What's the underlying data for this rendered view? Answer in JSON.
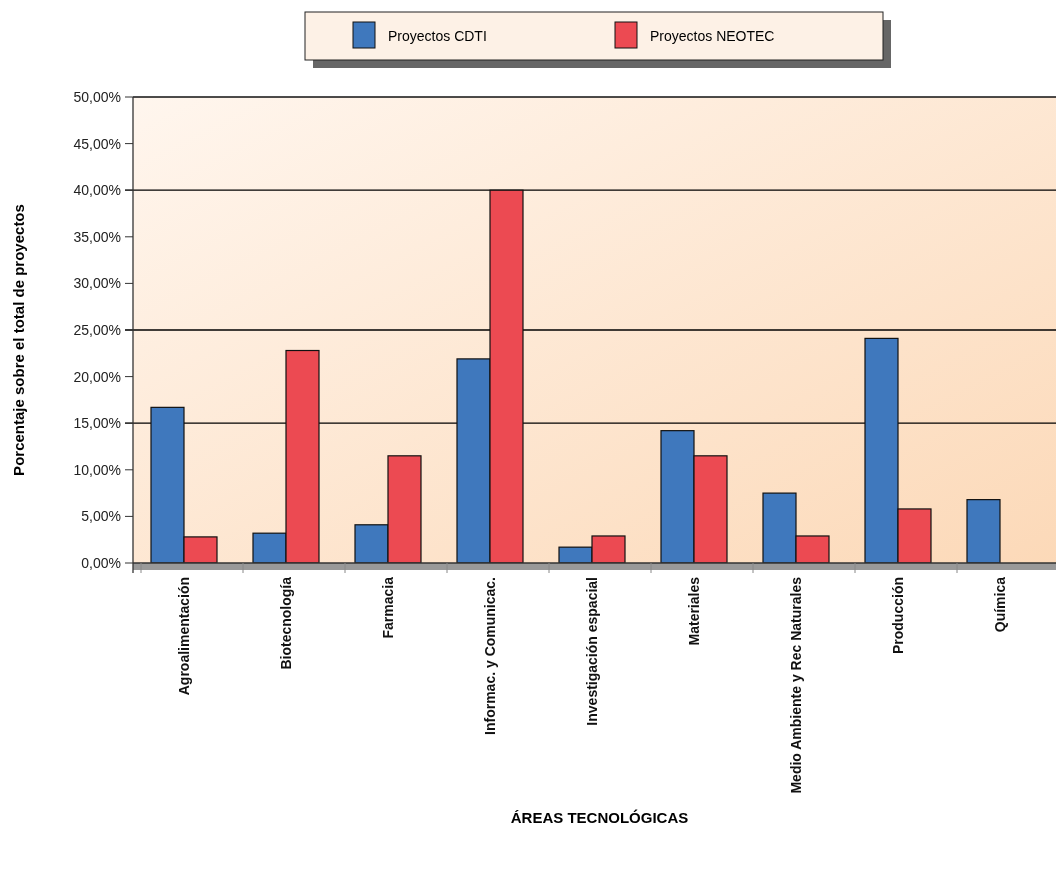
{
  "chart_data": {
    "type": "bar",
    "xlabel": "ÁREAS TECNOLÓGICAS",
    "ylabel": "Porcentaje sobre el total de proyectos",
    "categories": [
      "Agroalimentación",
      "Biotecnología",
      "Farmacia",
      "Informac. y Comunicac.",
      "Investigación espacial",
      "Materiales",
      "Medio Ambiente y Rec Naturales",
      "Producción",
      "Química"
    ],
    "series": [
      {
        "name": "Proyectos CDTI",
        "color": "#3f78bd",
        "values": [
          16.7,
          3.2,
          4.1,
          21.9,
          1.7,
          14.2,
          7.5,
          24.1,
          6.8
        ]
      },
      {
        "name": "Proyectos NEOTEC",
        "color": "#ec4a52",
        "values": [
          2.8,
          22.8,
          11.5,
          40.0,
          2.9,
          11.5,
          2.9,
          5.8,
          null
        ]
      }
    ],
    "ylim": [
      0,
      50
    ],
    "yticks": [
      {
        "value": 0,
        "label": "0,00%"
      },
      {
        "value": 5,
        "label": "5,00%"
      },
      {
        "value": 10,
        "label": "10,00%"
      },
      {
        "value": 15,
        "label": "15,00%"
      },
      {
        "value": 20,
        "label": "20,00%"
      },
      {
        "value": 25,
        "label": "25,00%"
      },
      {
        "value": 30,
        "label": "30,00%"
      },
      {
        "value": 35,
        "label": "35,00%"
      },
      {
        "value": 40,
        "label": "40,00%"
      },
      {
        "value": 45,
        "label": "45,00%"
      },
      {
        "value": 50,
        "label": "50,00%"
      }
    ],
    "ref_lines": [
      {
        "axis": "y",
        "value": 15,
        "color": "#000000"
      },
      {
        "axis": "y",
        "value": 25,
        "color": "#000000"
      },
      {
        "axis": "y",
        "value": 40,
        "color": "#000000"
      }
    ],
    "legend": "top"
  }
}
